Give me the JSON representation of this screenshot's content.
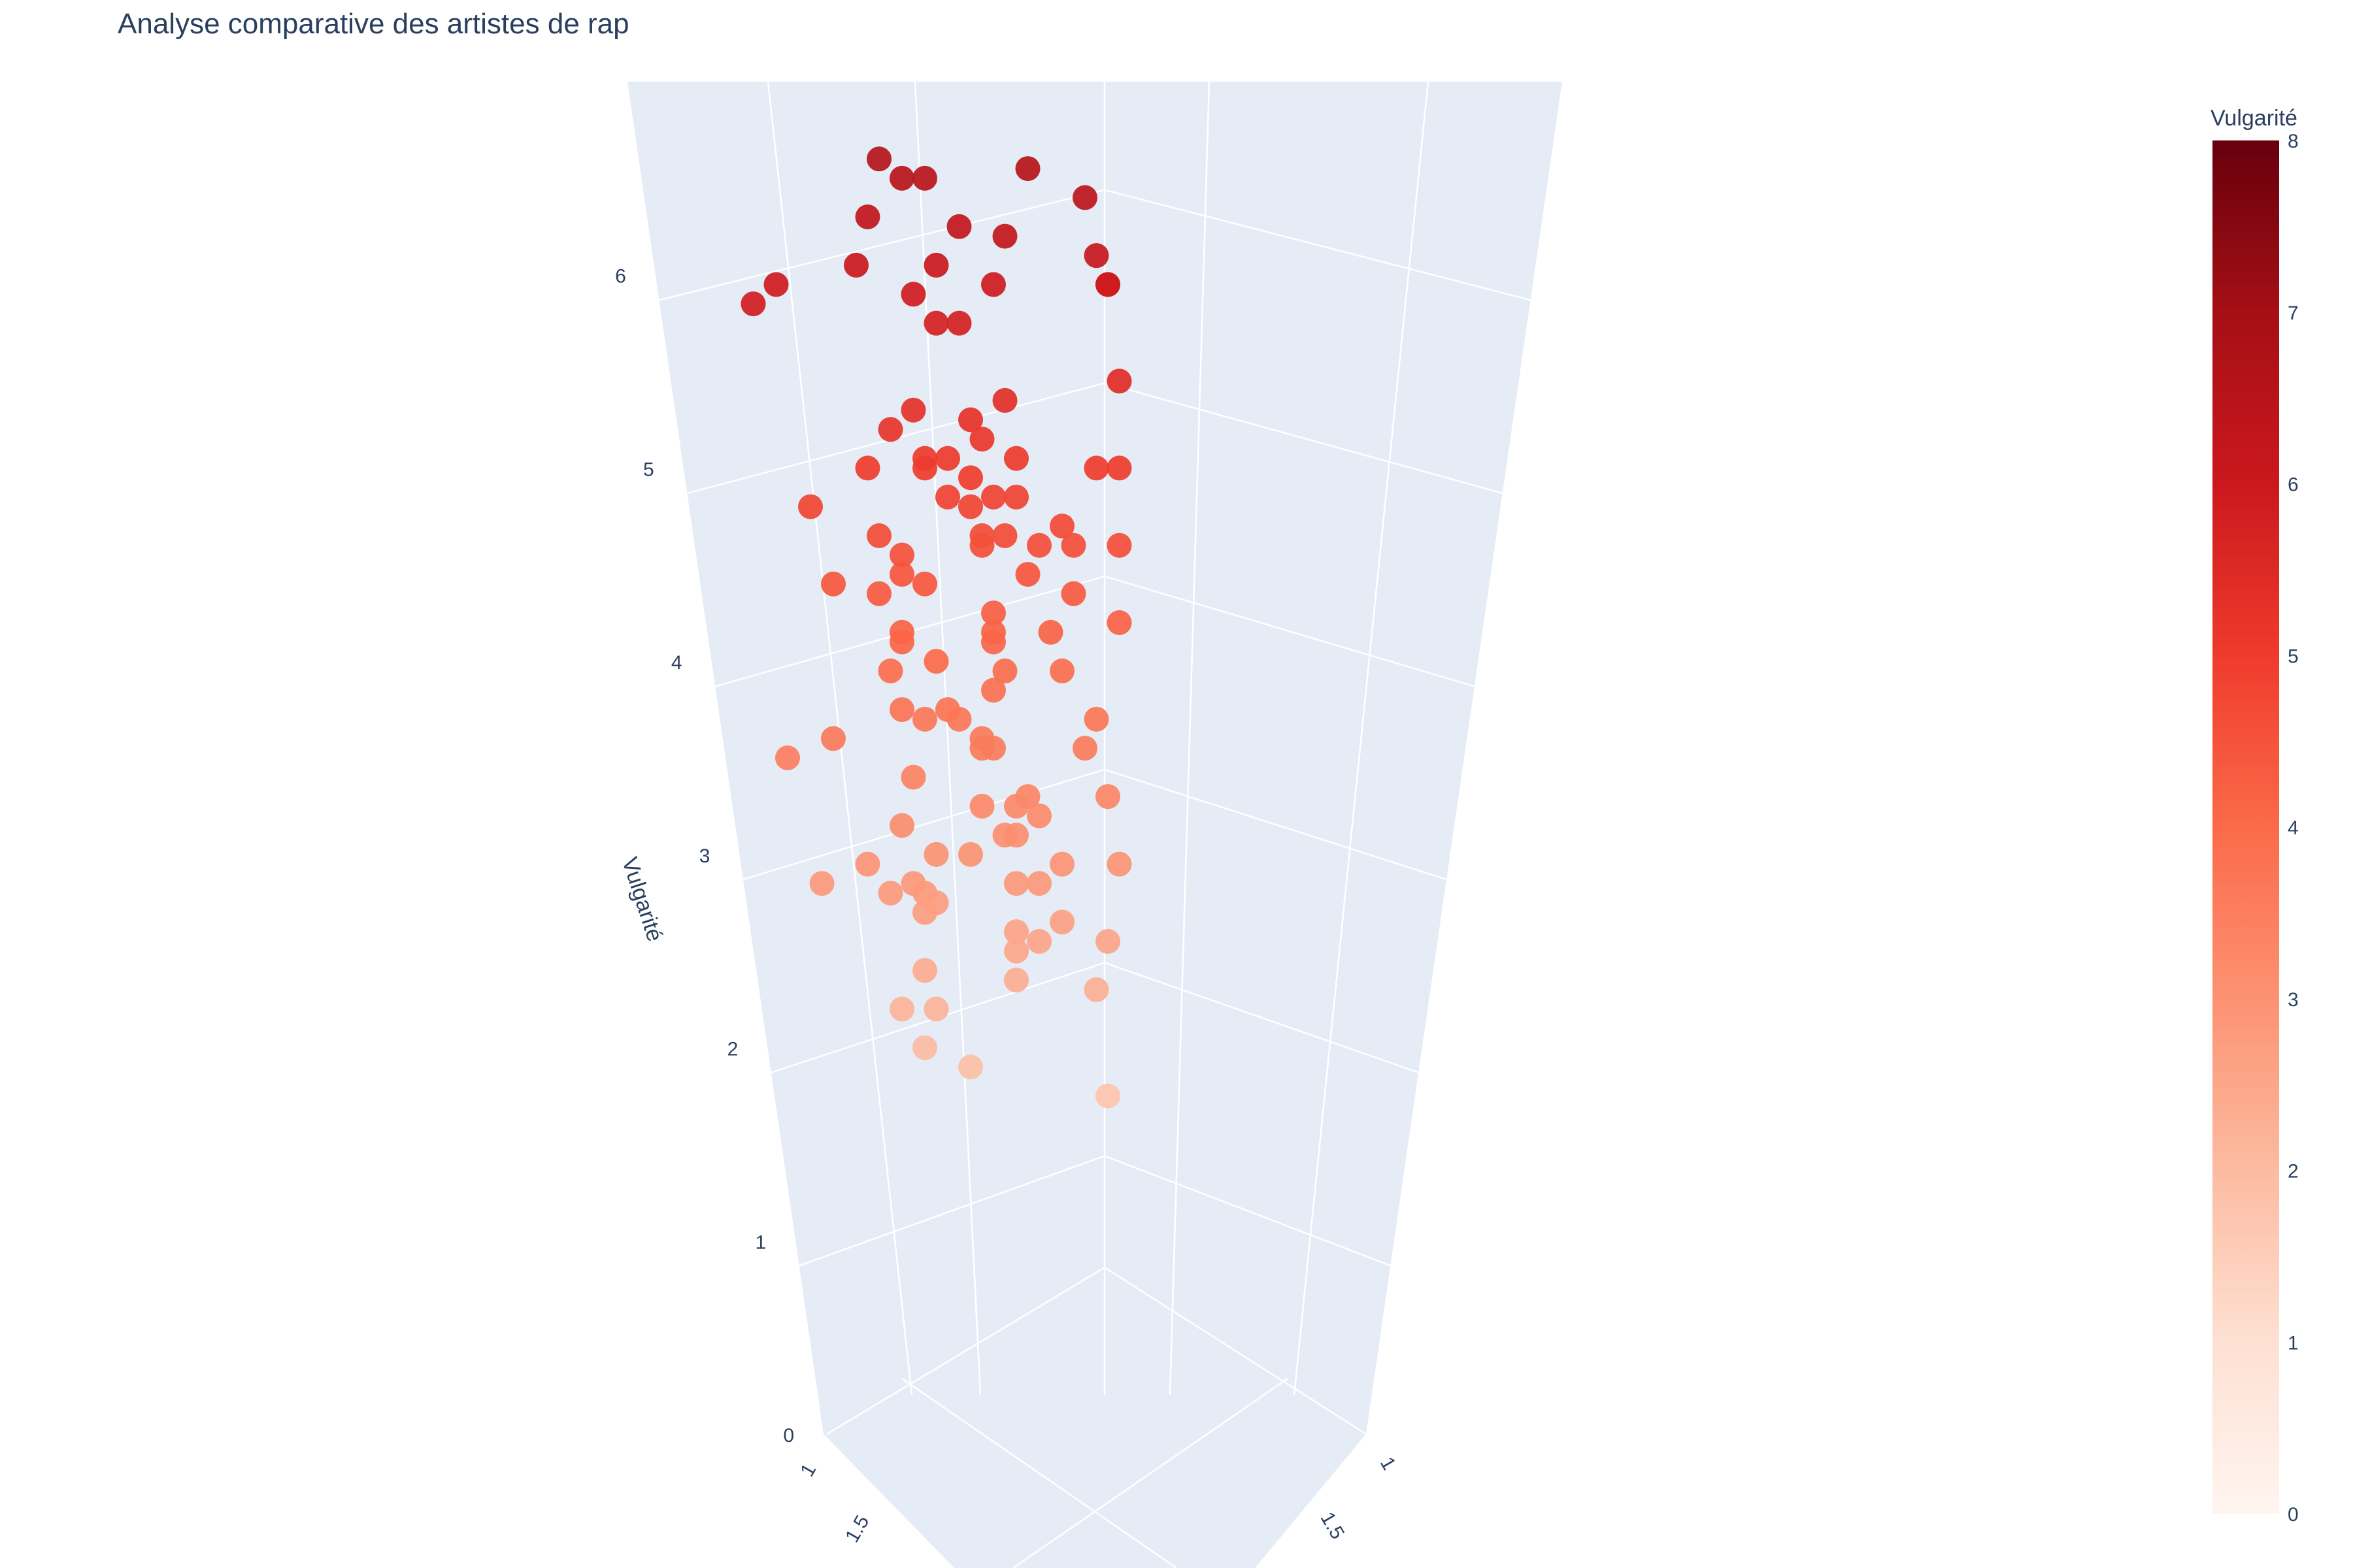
{
  "chart_data": {
    "type": "scatter",
    "title": "Analyse comparative des artistes de rap",
    "zlabel": "Vulgarité",
    "z_ticks": [
      "0",
      "1",
      "2",
      "3",
      "4",
      "5",
      "6"
    ],
    "x_ticks_visible": [
      "1",
      "1.5"
    ],
    "y_ticks_visible": [
      "1",
      "1.5"
    ],
    "colorbar": {
      "title": "Vulgarité",
      "range": [
        0,
        8
      ],
      "ticks": [
        "0",
        "1",
        "2",
        "3",
        "4",
        "5",
        "6",
        "7",
        "8"
      ],
      "colorscale": "Reds"
    },
    "grid": true,
    "series": [
      {
        "points": [
          {
            "u": 0.6,
            "z": 6.6
          },
          {
            "u": 0.8,
            "z": 6.5
          },
          {
            "u": 1.0,
            "z": 6.5
          },
          {
            "u": 1.9,
            "z": 6.55
          },
          {
            "u": 0.5,
            "z": 6.3
          },
          {
            "u": 1.3,
            "z": 6.25
          },
          {
            "u": 1.7,
            "z": 6.2
          },
          {
            "u": 1.1,
            "z": 6.05
          },
          {
            "u": 2.4,
            "z": 6.4
          },
          {
            "u": 0.4,
            "z": 6.05
          },
          {
            "u": 0.9,
            "z": 5.9
          },
          {
            "u": 1.6,
            "z": 5.95
          },
          {
            "u": 2.5,
            "z": 6.1
          },
          {
            "u": -0.3,
            "z": 5.95
          },
          {
            "u": -0.5,
            "z": 5.85
          },
          {
            "u": 1.1,
            "z": 5.75
          },
          {
            "u": 1.3,
            "z": 5.75
          },
          {
            "u": 2.6,
            "z": 5.95
          },
          {
            "u": 2.6,
            "z": 5.95
          },
          {
            "u": 0.9,
            "z": 5.3
          },
          {
            "u": 2.7,
            "z": 5.45
          },
          {
            "u": 1.7,
            "z": 5.35
          },
          {
            "u": 1.4,
            "z": 5.25
          },
          {
            "u": 0.7,
            "z": 5.2
          },
          {
            "u": 1.5,
            "z": 5.15
          },
          {
            "u": 1.0,
            "z": 5.05
          },
          {
            "u": 1.2,
            "z": 5.05
          },
          {
            "u": 1.8,
            "z": 5.05
          },
          {
            "u": 0.5,
            "z": 5.0
          },
          {
            "u": 1.0,
            "z": 5.0
          },
          {
            "u": 1.4,
            "z": 4.95
          },
          {
            "u": 2.5,
            "z": 5.0
          },
          {
            "u": 2.7,
            "z": 5.0
          },
          {
            "u": 0.0,
            "z": 4.8
          },
          {
            "u": 1.2,
            "z": 4.85
          },
          {
            "u": 1.6,
            "z": 4.85
          },
          {
            "u": 1.8,
            "z": 4.85
          },
          {
            "u": 1.4,
            "z": 4.8
          },
          {
            "u": 2.2,
            "z": 4.7
          },
          {
            "u": 0.6,
            "z": 4.65
          },
          {
            "u": 1.5,
            "z": 4.65
          },
          {
            "u": 1.7,
            "z": 4.65
          },
          {
            "u": 1.5,
            "z": 4.6
          },
          {
            "u": 2.0,
            "z": 4.6
          },
          {
            "u": 2.3,
            "z": 4.6
          },
          {
            "u": 2.7,
            "z": 4.6
          },
          {
            "u": 0.8,
            "z": 4.55
          },
          {
            "u": 0.2,
            "z": 4.4
          },
          {
            "u": 0.8,
            "z": 4.45
          },
          {
            "u": 1.0,
            "z": 4.4
          },
          {
            "u": 1.9,
            "z": 4.45
          },
          {
            "u": 0.6,
            "z": 4.35
          },
          {
            "u": 2.3,
            "z": 4.35
          },
          {
            "u": 1.6,
            "z": 4.25
          },
          {
            "u": 0.8,
            "z": 4.15
          },
          {
            "u": 1.6,
            "z": 4.15
          },
          {
            "u": 2.1,
            "z": 4.15
          },
          {
            "u": 0.8,
            "z": 4.1
          },
          {
            "u": 1.6,
            "z": 4.1
          },
          {
            "u": 2.7,
            "z": 4.2
          },
          {
            "u": 1.1,
            "z": 4.0
          },
          {
            "u": 0.7,
            "z": 3.95
          },
          {
            "u": 2.2,
            "z": 3.95
          },
          {
            "u": 1.7,
            "z": 3.95
          },
          {
            "u": 1.6,
            "z": 3.85
          },
          {
            "u": 0.8,
            "z": 3.75
          },
          {
            "u": 1.2,
            "z": 3.75
          },
          {
            "u": 0.2,
            "z": 3.6
          },
          {
            "u": 1.0,
            "z": 3.7
          },
          {
            "u": 1.3,
            "z": 3.7
          },
          {
            "u": 2.5,
            "z": 3.7
          },
          {
            "u": 1.5,
            "z": 3.6
          },
          {
            "u": 1.5,
            "z": 3.55
          },
          {
            "u": 1.6,
            "z": 3.55
          },
          {
            "u": 2.4,
            "z": 3.55
          },
          {
            "u": -0.2,
            "z": 3.5
          },
          {
            "u": 0.9,
            "z": 3.4
          },
          {
            "u": 1.9,
            "z": 3.3
          },
          {
            "u": 2.6,
            "z": 3.3
          },
          {
            "u": 1.8,
            "z": 3.25
          },
          {
            "u": 1.5,
            "z": 3.25
          },
          {
            "u": 2.0,
            "z": 3.2
          },
          {
            "u": 0.8,
            "z": 3.15
          },
          {
            "u": 1.7,
            "z": 3.1
          },
          {
            "u": 1.8,
            "z": 3.1
          },
          {
            "u": 1.4,
            "z": 3.0
          },
          {
            "u": 2.2,
            "z": 2.95
          },
          {
            "u": 1.1,
            "z": 3.0
          },
          {
            "u": 0.5,
            "z": 2.95
          },
          {
            "u": 2.7,
            "z": 2.95
          },
          {
            "u": 2.0,
            "z": 2.85
          },
          {
            "u": 0.1,
            "z": 2.85
          },
          {
            "u": 0.9,
            "z": 2.85
          },
          {
            "u": 1.8,
            "z": 2.85
          },
          {
            "u": 0.7,
            "z": 2.8
          },
          {
            "u": 1.0,
            "z": 2.8
          },
          {
            "u": 1.1,
            "z": 2.75
          },
          {
            "u": 1.0,
            "z": 2.7
          },
          {
            "u": 2.2,
            "z": 2.65
          },
          {
            "u": 1.8,
            "z": 2.6
          },
          {
            "u": 2.0,
            "z": 2.55
          },
          {
            "u": 2.6,
            "z": 2.55
          },
          {
            "u": 1.8,
            "z": 2.5
          },
          {
            "u": 1.0,
            "z": 2.4
          },
          {
            "u": 1.8,
            "z": 2.35
          },
          {
            "u": 2.5,
            "z": 2.3
          },
          {
            "u": 0.8,
            "z": 2.2
          },
          {
            "u": 1.1,
            "z": 2.2
          },
          {
            "u": 1.0,
            "z": 2.0
          },
          {
            "u": 1.4,
            "z": 1.9
          },
          {
            "u": 2.6,
            "z": 1.75
          }
        ]
      }
    ]
  }
}
